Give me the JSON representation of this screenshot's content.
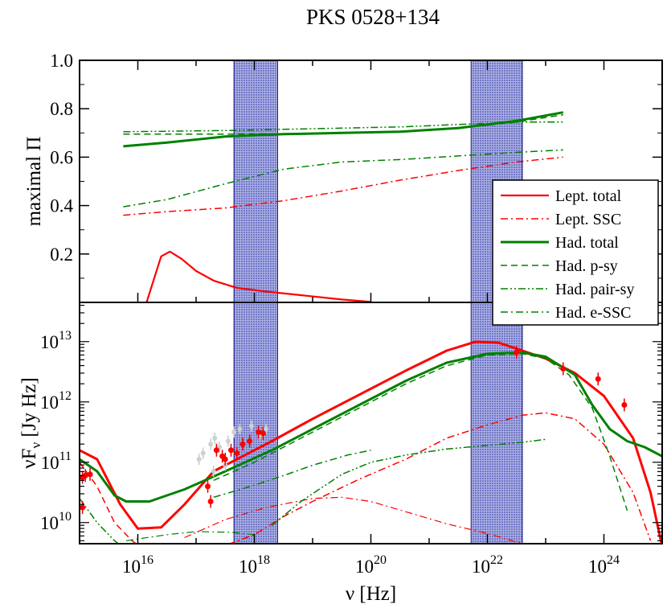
{
  "title": "PKS 0528+134",
  "chart_data": [
    {
      "type": "line",
      "panel": "top",
      "ylabel": "maximal Π",
      "ylim": [
        0.0,
        1.0
      ],
      "yticks": [
        0.2,
        0.4,
        0.6,
        0.8,
        1.0
      ],
      "ytick_labels": [
        "0.2",
        "0.4",
        "0.6",
        "0.8",
        "1.0"
      ],
      "xlim_log10": [
        15,
        25
      ],
      "shaded_bands_log10": [
        [
          17.65,
          18.4
        ],
        [
          21.72,
          22.6
        ]
      ],
      "legend": {
        "position": "right",
        "entries": [
          "Lept. total",
          "Lept. SSC",
          "Had. total",
          "Had. p-sy",
          "Had. pair-sy",
          "Had. e-SSC"
        ]
      },
      "series": [
        {
          "name": "Lept. total",
          "color": "#ff0000",
          "style": "solid",
          "width": 2.2,
          "x_log10": [
            16.15,
            16.4,
            16.55,
            16.75,
            17.0,
            17.3,
            17.7,
            18.2,
            18.8,
            19.5,
            20.0
          ],
          "y": [
            0.0,
            0.19,
            0.21,
            0.18,
            0.13,
            0.09,
            0.06,
            0.045,
            0.03,
            0.012,
            0.002
          ]
        },
        {
          "name": "Lept. SSC",
          "color": "#ff0000",
          "style": "dashdot",
          "width": 1.5,
          "x_log10": [
            15.75,
            16.5,
            17.5,
            18.5,
            19.5,
            20.5,
            21.5,
            22.5,
            23.3
          ],
          "y": [
            0.36,
            0.375,
            0.39,
            0.42,
            0.46,
            0.505,
            0.545,
            0.58,
            0.6
          ]
        },
        {
          "name": "Had. total",
          "color": "#008000",
          "style": "solid",
          "width": 3,
          "x_log10": [
            15.75,
            16.5,
            17.5,
            18.5,
            19.5,
            20.5,
            21.5,
            22.5,
            23.3
          ],
          "y": [
            0.645,
            0.66,
            0.685,
            0.695,
            0.7,
            0.705,
            0.72,
            0.75,
            0.785
          ]
        },
        {
          "name": "Had. p-sy",
          "color": "#008000",
          "style": "dashed",
          "width": 1.5,
          "x_log10": [
            15.75,
            16.5,
            17.5,
            18.5,
            19.5,
            20.5,
            21.5,
            22.5,
            23.3
          ],
          "y": [
            0.695,
            0.695,
            0.695,
            0.697,
            0.7,
            0.705,
            0.72,
            0.745,
            0.775
          ]
        },
        {
          "name": "Had. pair-sy",
          "color": "#008000",
          "style": "dashdotdot",
          "width": 1.5,
          "x_log10": [
            15.75,
            16.5,
            17.5,
            18.5,
            19.5,
            20.5,
            21.5,
            22.5,
            23.3
          ],
          "y": [
            0.705,
            0.707,
            0.71,
            0.715,
            0.72,
            0.725,
            0.735,
            0.745,
            0.745
          ]
        },
        {
          "name": "Had. e-SSC",
          "color": "#008000",
          "style": "dashdot",
          "width": 1.5,
          "x_log10": [
            15.75,
            16.5,
            17.5,
            18.5,
            19.5,
            20.5,
            21.5,
            22.5,
            23.3
          ],
          "y": [
            0.395,
            0.425,
            0.49,
            0.55,
            0.58,
            0.59,
            0.605,
            0.62,
            0.63
          ]
        }
      ]
    },
    {
      "type": "line",
      "panel": "bottom",
      "xlabel": "ν [Hz]",
      "ylabel": "νF_ν [Jy Hz]",
      "xlim_log10": [
        15,
        25
      ],
      "ylim_log10": [
        9.65,
        13.65
      ],
      "xticks_log10": [
        16,
        18,
        20,
        22,
        24
      ],
      "xtick_labels": [
        "10^16",
        "10^18",
        "10^20",
        "10^22",
        "10^24"
      ],
      "yticks_log10": [
        10,
        11,
        12,
        13
      ],
      "ytick_labels": [
        "10^10",
        "10^11",
        "10^12",
        "10^13"
      ],
      "shaded_bands_log10": [
        [
          17.65,
          18.4
        ],
        [
          21.72,
          22.6
        ]
      ],
      "series": [
        {
          "name": "Lept. total",
          "color": "#ff0000",
          "style": "solid",
          "width": 3,
          "x_log10": [
            15.0,
            15.3,
            15.7,
            16.0,
            16.4,
            16.8,
            17.3,
            17.8,
            18.3,
            19.0,
            19.8,
            20.6,
            21.3,
            21.8,
            22.2,
            22.6,
            23.0,
            23.5,
            24.0,
            24.5,
            24.8,
            25.0
          ],
          "y_log10": [
            11.2,
            11.05,
            10.3,
            9.9,
            9.92,
            10.3,
            10.85,
            11.1,
            11.35,
            11.72,
            12.12,
            12.52,
            12.85,
            13.0,
            12.98,
            12.85,
            12.72,
            12.48,
            12.1,
            11.4,
            10.5,
            9.6
          ]
        },
        {
          "name": "Lept. SSC",
          "color": "#ff0000",
          "style": "dashdot",
          "width": 1.5,
          "x_log10": [
            17.3,
            18.0,
            18.5,
            19.0,
            19.8,
            20.6,
            21.3,
            22.0,
            22.6,
            23.0,
            23.5,
            24.0,
            24.5,
            24.8
          ],
          "y_log10": [
            9.55,
            9.8,
            10.1,
            10.35,
            10.72,
            11.05,
            11.4,
            11.62,
            11.78,
            11.82,
            11.72,
            11.3,
            10.5,
            9.7
          ]
        },
        {
          "name": "Lept. e-sync",
          "color": "#ff0000",
          "style": "dashdot",
          "width": 1.2,
          "x_log10": [
            16.8,
            17.5,
            18.2,
            19.0,
            19.5,
            20.0,
            20.6,
            21.3,
            22.0,
            22.6,
            23.0
          ],
          "y_log10": [
            9.75,
            10.05,
            10.25,
            10.4,
            10.42,
            10.35,
            10.18,
            9.98,
            9.82,
            9.65,
            9.5
          ]
        },
        {
          "name": "Lept. dashed",
          "color": "#ff0000",
          "style": "dashed",
          "width": 1.5,
          "x_log10": [
            15.0,
            15.3,
            15.6,
            15.9,
            16.1
          ],
          "y_log10": [
            11.0,
            10.6,
            10.0,
            9.7,
            9.55
          ]
        },
        {
          "name": "Had. total",
          "color": "#008000",
          "style": "solid",
          "width": 3,
          "x_log10": [
            15.0,
            15.3,
            15.6,
            15.8,
            16.2,
            16.8,
            17.5,
            18.3,
            19.0,
            19.8,
            20.6,
            21.3,
            22.0,
            22.6,
            23.0,
            23.5,
            23.8,
            24.1,
            24.4,
            24.7,
            25.0
          ],
          "y_log10": [
            11.05,
            10.85,
            10.45,
            10.35,
            10.35,
            10.55,
            10.85,
            11.2,
            11.55,
            11.95,
            12.35,
            12.65,
            12.8,
            12.82,
            12.75,
            12.45,
            11.95,
            11.55,
            11.35,
            11.25,
            11.1
          ]
        },
        {
          "name": "Had. p-sy",
          "color": "#008000",
          "style": "dashed",
          "width": 1.5,
          "x_log10": [
            17.3,
            18.0,
            19.0,
            19.8,
            20.6,
            21.3,
            22.0,
            22.6,
            23.0,
            23.4,
            23.8,
            24.1,
            24.4
          ],
          "y_log10": [
            10.7,
            11.0,
            11.5,
            11.9,
            12.3,
            12.6,
            12.78,
            12.8,
            12.72,
            12.45,
            11.9,
            11.1,
            10.2
          ]
        },
        {
          "name": "Had. pair-sy",
          "color": "#008000",
          "style": "dashdotdot",
          "width": 1.5,
          "x_log10": [
            15.0,
            15.3,
            15.6,
            15.8
          ],
          "y_log10": [
            10.4,
            10.0,
            9.7,
            9.55
          ]
        },
        {
          "name": "Had. pair-sy IC",
          "color": "#008000",
          "style": "dashdotdot",
          "width": 1.5,
          "x_log10": [
            18.3,
            18.8,
            19.5,
            20.0,
            20.6,
            21.3,
            22.0,
            22.6,
            23.0
          ],
          "y_log10": [
            9.95,
            10.35,
            10.8,
            11.0,
            11.12,
            11.22,
            11.28,
            11.33,
            11.38
          ]
        },
        {
          "name": "Had. e-SSC",
          "color": "#008000",
          "style": "dashdot",
          "width": 1.5,
          "x_log10": [
            17.3,
            18.0,
            18.5,
            19.0,
            19.6,
            20.0
          ],
          "y_log10": [
            10.42,
            10.62,
            10.78,
            10.95,
            11.12,
            11.2
          ]
        },
        {
          "name": "Had. e-SSC low",
          "color": "#008000",
          "style": "dashdot",
          "width": 1.2,
          "x_log10": [
            15.8,
            16.5,
            17.0,
            17.6,
            18.0
          ],
          "y_log10": [
            9.7,
            9.8,
            9.85,
            9.84,
            9.8
          ]
        }
      ],
      "points_red": [
        {
          "x_log10": 15.05,
          "y_log10": 10.75
        },
        {
          "x_log10": 15.05,
          "y_log10": 10.25
        },
        {
          "x_log10": 15.1,
          "y_log10": 10.78
        },
        {
          "x_log10": 15.18,
          "y_log10": 10.8
        },
        {
          "x_log10": 17.2,
          "y_log10": 10.6
        },
        {
          "x_log10": 17.25,
          "y_log10": 10.35
        },
        {
          "x_log10": 17.35,
          "y_log10": 11.2
        },
        {
          "x_log10": 17.45,
          "y_log10": 11.1
        },
        {
          "x_log10": 17.5,
          "y_log10": 11.05
        },
        {
          "x_log10": 17.6,
          "y_log10": 11.2
        },
        {
          "x_log10": 17.7,
          "y_log10": 11.15
        },
        {
          "x_log10": 17.8,
          "y_log10": 11.3
        },
        {
          "x_log10": 17.92,
          "y_log10": 11.35
        },
        {
          "x_log10": 18.07,
          "y_log10": 11.5
        },
        {
          "x_log10": 18.15,
          "y_log10": 11.48
        },
        {
          "x_log10": 22.5,
          "y_log10": 12.82
        },
        {
          "x_log10": 23.3,
          "y_log10": 12.55
        },
        {
          "x_log10": 23.9,
          "y_log10": 12.38
        },
        {
          "x_log10": 24.35,
          "y_log10": 11.95
        }
      ],
      "points_grey": [
        {
          "x_log10": 17.05,
          "y_log10": 11.05
        },
        {
          "x_log10": 17.12,
          "y_log10": 11.15
        },
        {
          "x_log10": 17.25,
          "y_log10": 11.3
        },
        {
          "x_log10": 17.32,
          "y_log10": 11.4
        },
        {
          "x_log10": 17.4,
          "y_log10": 11.25
        },
        {
          "x_log10": 17.55,
          "y_log10": 11.35
        },
        {
          "x_log10": 17.65,
          "y_log10": 11.5
        },
        {
          "x_log10": 17.75,
          "y_log10": 11.55
        },
        {
          "x_log10": 17.95,
          "y_log10": 11.6
        },
        {
          "x_log10": 18.1,
          "y_log10": 11.45
        },
        {
          "x_log10": 18.2,
          "y_log10": 11.55
        },
        {
          "x_log10": 17.5,
          "y_log10": 10.95
        },
        {
          "x_log10": 17.3,
          "y_log10": 10.85
        }
      ]
    }
  ]
}
